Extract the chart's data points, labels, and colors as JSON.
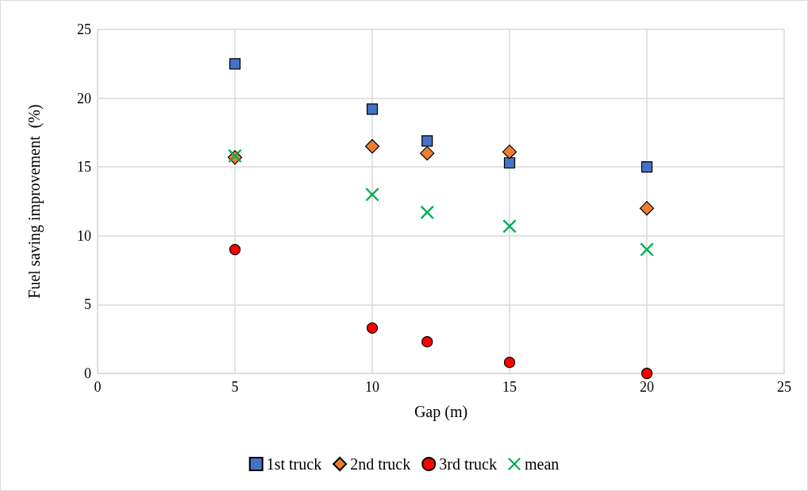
{
  "chart_data": {
    "type": "scatter",
    "xlabel": "Gap (m)",
    "ylabel": "Fuel saving improvement  (%)",
    "x": [
      5,
      10,
      12,
      15,
      20
    ],
    "series": [
      {
        "name": "1st truck",
        "color": "#4472c4",
        "marker": "square",
        "values": [
          22.5,
          19.2,
          16.9,
          15.3,
          15.0
        ]
      },
      {
        "name": "2nd truck",
        "color": "#ed7d31",
        "marker": "diamond",
        "values": [
          15.7,
          16.5,
          16.0,
          16.1,
          12.0
        ]
      },
      {
        "name": "3rd truck",
        "color": "#ff0000",
        "marker": "circle",
        "values": [
          9.0,
          3.3,
          2.3,
          0.8,
          0
        ]
      },
      {
        "name": "mean",
        "color": "#00b050",
        "marker": "cross",
        "values": [
          15.8,
          13.0,
          11.7,
          10.7,
          9.0
        ]
      }
    ],
    "xlim": [
      0,
      25
    ],
    "xticks": [
      0,
      5,
      10,
      15,
      20,
      25
    ],
    "ylim": [
      0,
      25
    ],
    "yticks": [
      0,
      5,
      10,
      15,
      20,
      25
    ],
    "grid": true,
    "legend": "bottom"
  }
}
